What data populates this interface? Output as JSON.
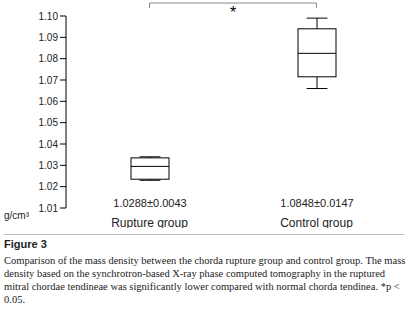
{
  "chart_data": {
    "type": "box",
    "categories": [
      "Rupture group",
      "Control group"
    ],
    "boxes": [
      {
        "min": 1.023,
        "q1": 1.0235,
        "median": 1.0295,
        "q3": 1.0335,
        "max": 1.034
      },
      {
        "min": 1.066,
        "q1": 1.0715,
        "median": 1.0825,
        "q3": 1.094,
        "max": 1.099
      }
    ],
    "stat_labels": [
      "1.0288±0.0043",
      "1.0848±0.0147"
    ],
    "y_label": "g/cm³",
    "ylim": [
      1.01,
      1.1
    ],
    "yticks": [
      1.01,
      1.02,
      1.03,
      1.04,
      1.05,
      1.06,
      1.07,
      1.08,
      1.09,
      {
        "value": 1.1,
        "label": "1.10"
      }
    ],
    "color": "#000000",
    "significance": "*",
    "caption_title": "Figure 3",
    "caption": "Comparison of the mass density between the chorda rupture group and control group. The mass density based on the synchrotron-based X-ray phase computed tomography in the ruptured mitral chordae tendineae was significantly lower compared with normal chorda tendinea. *p < 0.05."
  }
}
